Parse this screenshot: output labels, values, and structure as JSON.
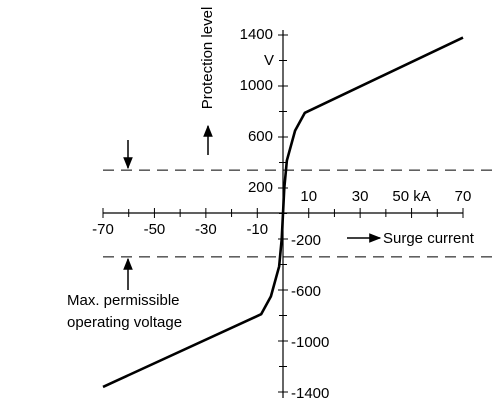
{
  "chart_data": {
    "type": "line",
    "x": [
      -70,
      -8.5,
      -4.7,
      -1.5,
      -0.5,
      0,
      0.5,
      1.5,
      4.7,
      8.5,
      70
    ],
    "values": [
      -1360,
      -790,
      -650,
      -415,
      -200,
      0,
      200,
      415,
      650,
      790,
      1380
    ],
    "color": "#000000",
    "xlim": [
      -70,
      70
    ],
    "ylim": [
      -1400,
      1400
    ],
    "xticks": [
      -70,
      -50,
      -30,
      -10,
      10,
      30,
      {
        "value": 50,
        "label": "50 kA"
      },
      70
    ],
    "xminorticks": [
      -60,
      -40,
      -20,
      0,
      20,
      40,
      60
    ],
    "yticks": [
      -1400,
      -1000,
      -600,
      -200,
      200,
      600,
      1000,
      1400
    ],
    "yminorticks": [
      -1200,
      -800,
      -400,
      0,
      400,
      800,
      1200
    ],
    "y_unit": "V",
    "y_label": "Protection level",
    "x_label": "Surge current",
    "reference_lines": [
      340,
      -340
    ],
    "annotation": [
      "Max. permissible",
      "operating voltage"
    ]
  }
}
